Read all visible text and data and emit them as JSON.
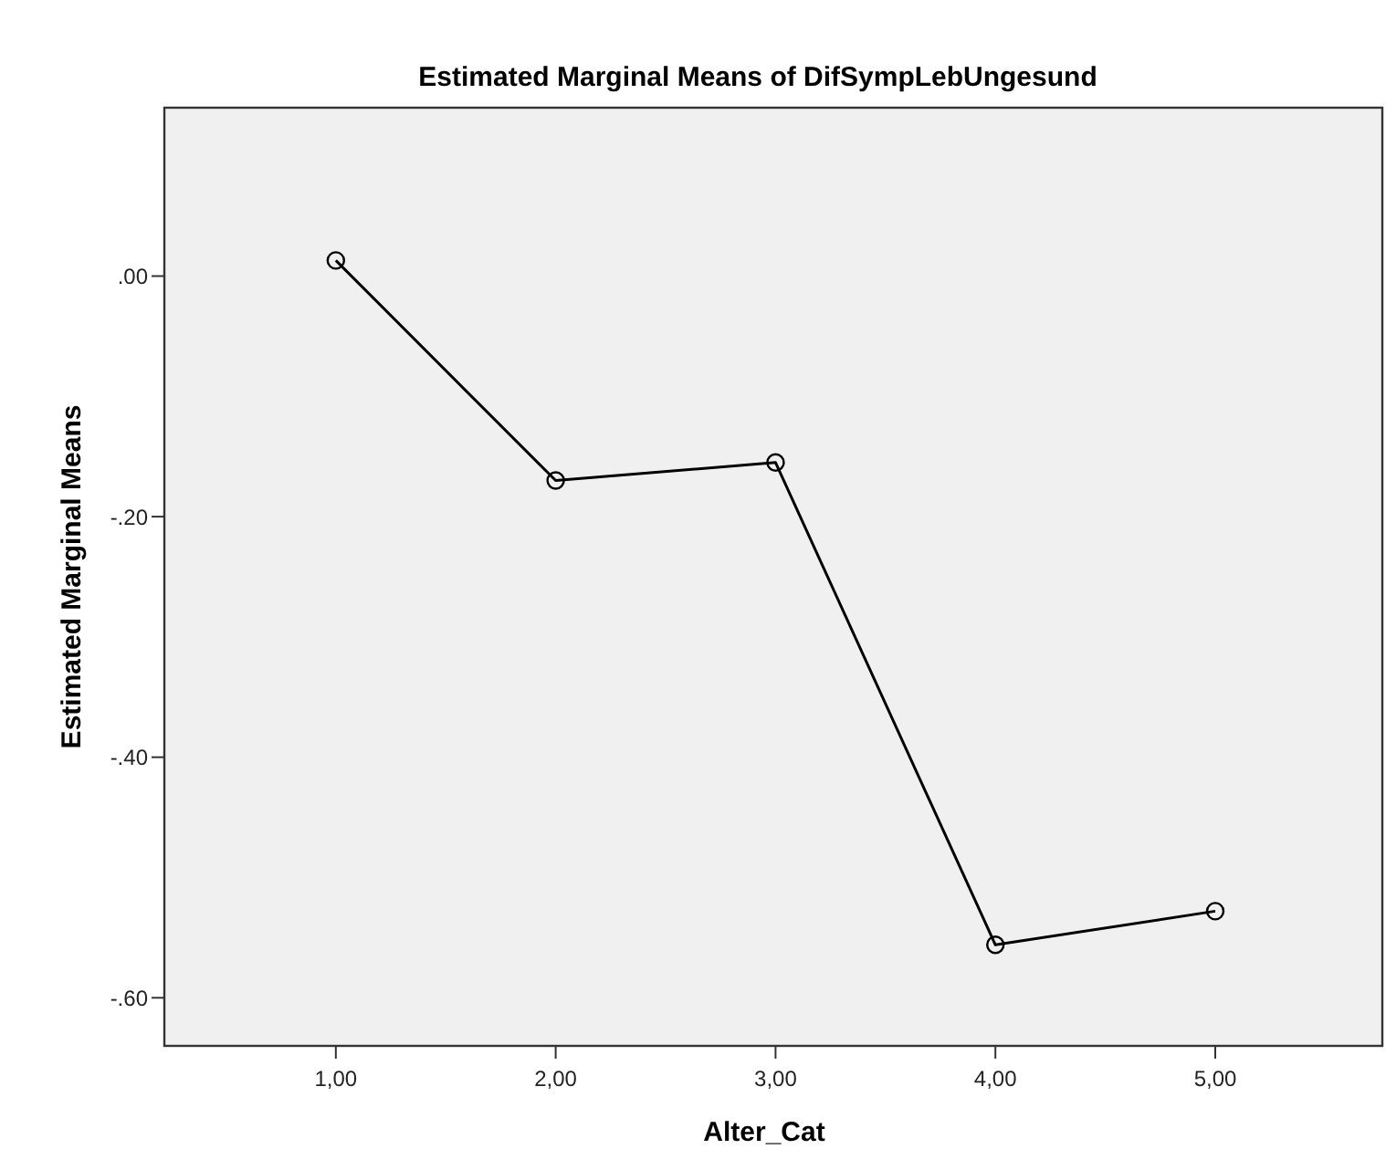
{
  "chart_data": {
    "type": "line",
    "title": "Estimated Marginal Means of DifSympLebUngesund",
    "xlabel": "Alter_Cat",
    "ylabel": "Estimated Marginal Means",
    "x": [
      1,
      2,
      3,
      4,
      5
    ],
    "series": [
      {
        "color": "#000000",
        "values": [
          0.013,
          -0.17,
          -0.155,
          -0.556,
          -0.528
        ]
      }
    ],
    "xlim": [
      0.22,
      5.76
    ],
    "xticks": [
      {
        "value": 1,
        "label": "1,00"
      },
      {
        "value": 2,
        "label": "2,00"
      },
      {
        "value": 3,
        "label": "3,00"
      },
      {
        "value": 4,
        "label": "4,00"
      },
      {
        "value": 5,
        "label": "5,00"
      }
    ],
    "ylim": [
      -0.64,
      0.14
    ],
    "yticks": [
      {
        "value": 0,
        "label": ".00"
      },
      {
        "value": -0.2,
        "label": "-.20"
      },
      {
        "value": -0.4,
        "label": "-.40"
      },
      {
        "value": -0.6,
        "label": "-.60"
      }
    ],
    "marker": "circle",
    "line_style": "solid",
    "grid": false
  }
}
